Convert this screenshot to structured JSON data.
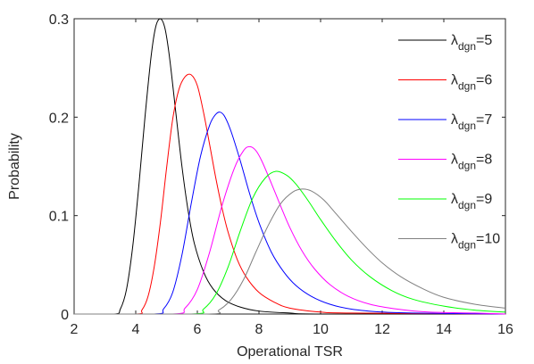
{
  "chart_data": {
    "type": "line",
    "title": "",
    "xlabel": "Operational TSR",
    "ylabel": "Probability",
    "xlim": [
      2,
      16
    ],
    "ylim": [
      0,
      0.3
    ],
    "xticks": [
      2,
      4,
      6,
      8,
      10,
      12,
      14,
      16
    ],
    "xtick_labels": [
      "2",
      "4",
      "6",
      "8",
      "10",
      "12",
      "14",
      "16"
    ],
    "yticks": [
      0,
      0.1,
      0.2,
      0.3
    ],
    "ytick_labels": [
      "0",
      "0.1",
      "0.2",
      "0.3"
    ],
    "grid": false,
    "legend_position": "top-right",
    "series": [
      {
        "name": "λdgn=5",
        "legend": {
          "symbol": "λ",
          "subscript": "dgn",
          "value": "=5"
        },
        "color": "#000000",
        "points": [
          [
            2,
            0
          ],
          [
            3.3,
            0
          ],
          [
            3.5,
            0.005
          ],
          [
            3.7,
            0.025
          ],
          [
            3.9,
            0.068
          ],
          [
            4.1,
            0.13
          ],
          [
            4.3,
            0.2
          ],
          [
            4.5,
            0.262
          ],
          [
            4.65,
            0.292
          ],
          [
            4.8,
            0.3
          ],
          [
            4.95,
            0.29
          ],
          [
            5.1,
            0.26
          ],
          [
            5.3,
            0.205
          ],
          [
            5.5,
            0.15
          ],
          [
            5.7,
            0.105
          ],
          [
            5.9,
            0.072
          ],
          [
            6.2,
            0.043
          ],
          [
            6.5,
            0.026
          ],
          [
            6.9,
            0.014
          ],
          [
            7.4,
            0.007
          ],
          [
            8,
            0.003
          ],
          [
            9,
            0.001
          ],
          [
            10,
            0
          ],
          [
            16,
            0
          ]
        ]
      },
      {
        "name": "λdgn=6",
        "legend": {
          "symbol": "λ",
          "subscript": "dgn",
          "value": "=6"
        },
        "color": "#ff0000",
        "points": [
          [
            2,
            0
          ],
          [
            4.0,
            0
          ],
          [
            4.2,
            0.004
          ],
          [
            4.4,
            0.018
          ],
          [
            4.6,
            0.048
          ],
          [
            4.8,
            0.093
          ],
          [
            5.0,
            0.148
          ],
          [
            5.2,
            0.198
          ],
          [
            5.4,
            0.228
          ],
          [
            5.6,
            0.241
          ],
          [
            5.8,
            0.243
          ],
          [
            6.0,
            0.232
          ],
          [
            6.2,
            0.205
          ],
          [
            6.4,
            0.172
          ],
          [
            6.6,
            0.138
          ],
          [
            6.8,
            0.108
          ],
          [
            7.0,
            0.083
          ],
          [
            7.3,
            0.055
          ],
          [
            7.6,
            0.037
          ],
          [
            8.0,
            0.022
          ],
          [
            8.5,
            0.012
          ],
          [
            9,
            0.006
          ],
          [
            10,
            0.002
          ],
          [
            11,
            0.001
          ],
          [
            16,
            0
          ]
        ]
      },
      {
        "name": "λdgn=7",
        "legend": {
          "symbol": "λ",
          "subscript": "dgn",
          "value": "=7"
        },
        "color": "#0000ff",
        "points": [
          [
            2,
            0
          ],
          [
            4.6,
            0
          ],
          [
            4.9,
            0.005
          ],
          [
            5.2,
            0.022
          ],
          [
            5.5,
            0.06
          ],
          [
            5.8,
            0.112
          ],
          [
            6.1,
            0.16
          ],
          [
            6.4,
            0.192
          ],
          [
            6.6,
            0.203
          ],
          [
            6.75,
            0.205
          ],
          [
            6.9,
            0.2
          ],
          [
            7.1,
            0.185
          ],
          [
            7.4,
            0.155
          ],
          [
            7.7,
            0.122
          ],
          [
            8.0,
            0.093
          ],
          [
            8.4,
            0.063
          ],
          [
            8.8,
            0.043
          ],
          [
            9.2,
            0.029
          ],
          [
            9.7,
            0.018
          ],
          [
            10.3,
            0.01
          ],
          [
            11,
            0.005
          ],
          [
            12,
            0.002
          ],
          [
            13,
            0.001
          ],
          [
            16,
            0
          ]
        ]
      },
      {
        "name": "λdgn=8",
        "legend": {
          "symbol": "λ",
          "subscript": "dgn",
          "value": "=8"
        },
        "color": "#ff00ff",
        "points": [
          [
            2,
            0
          ],
          [
            5.2,
            0
          ],
          [
            5.6,
            0.006
          ],
          [
            6.0,
            0.025
          ],
          [
            6.4,
            0.063
          ],
          [
            6.8,
            0.11
          ],
          [
            7.2,
            0.148
          ],
          [
            7.5,
            0.166
          ],
          [
            7.7,
            0.17
          ],
          [
            7.9,
            0.166
          ],
          [
            8.1,
            0.155
          ],
          [
            8.4,
            0.133
          ],
          [
            8.7,
            0.11
          ],
          [
            9.0,
            0.088
          ],
          [
            9.4,
            0.064
          ],
          [
            9.8,
            0.046
          ],
          [
            10.3,
            0.03
          ],
          [
            10.9,
            0.018
          ],
          [
            11.6,
            0.01
          ],
          [
            12.5,
            0.005
          ],
          [
            13.5,
            0.002
          ],
          [
            15,
            0.001
          ],
          [
            16,
            0
          ]
        ]
      },
      {
        "name": "λdgn=9",
        "legend": {
          "symbol": "λ",
          "subscript": "dgn",
          "value": "=9"
        },
        "color": "#00ff00",
        "points": [
          [
            2,
            0
          ],
          [
            5.8,
            0
          ],
          [
            6.2,
            0.005
          ],
          [
            6.6,
            0.02
          ],
          [
            7.0,
            0.048
          ],
          [
            7.4,
            0.085
          ],
          [
            7.8,
            0.118
          ],
          [
            8.2,
            0.138
          ],
          [
            8.55,
            0.145
          ],
          [
            8.9,
            0.141
          ],
          [
            9.2,
            0.132
          ],
          [
            9.6,
            0.115
          ],
          [
            10.0,
            0.096
          ],
          [
            10.5,
            0.074
          ],
          [
            11.0,
            0.055
          ],
          [
            11.6,
            0.038
          ],
          [
            12.3,
            0.024
          ],
          [
            13.0,
            0.015
          ],
          [
            14.0,
            0.008
          ],
          [
            15.0,
            0.004
          ],
          [
            16,
            0.002
          ]
        ]
      },
      {
        "name": "λdgn=10",
        "legend": {
          "symbol": "λ",
          "subscript": "dgn",
          "value": "=10"
        },
        "color": "#808080",
        "points": [
          [
            2,
            0
          ],
          [
            6.3,
            0
          ],
          [
            6.7,
            0.004
          ],
          [
            7.1,
            0.015
          ],
          [
            7.5,
            0.035
          ],
          [
            7.9,
            0.063
          ],
          [
            8.3,
            0.09
          ],
          [
            8.7,
            0.112
          ],
          [
            9.1,
            0.124
          ],
          [
            9.4,
            0.127
          ],
          [
            9.7,
            0.125
          ],
          [
            10.1,
            0.116
          ],
          [
            10.5,
            0.102
          ],
          [
            11.0,
            0.084
          ],
          [
            11.5,
            0.067
          ],
          [
            12.0,
            0.052
          ],
          [
            12.6,
            0.038
          ],
          [
            13.3,
            0.026
          ],
          [
            14.0,
            0.017
          ],
          [
            15.0,
            0.01
          ],
          [
            16,
            0.006
          ]
        ]
      }
    ]
  }
}
